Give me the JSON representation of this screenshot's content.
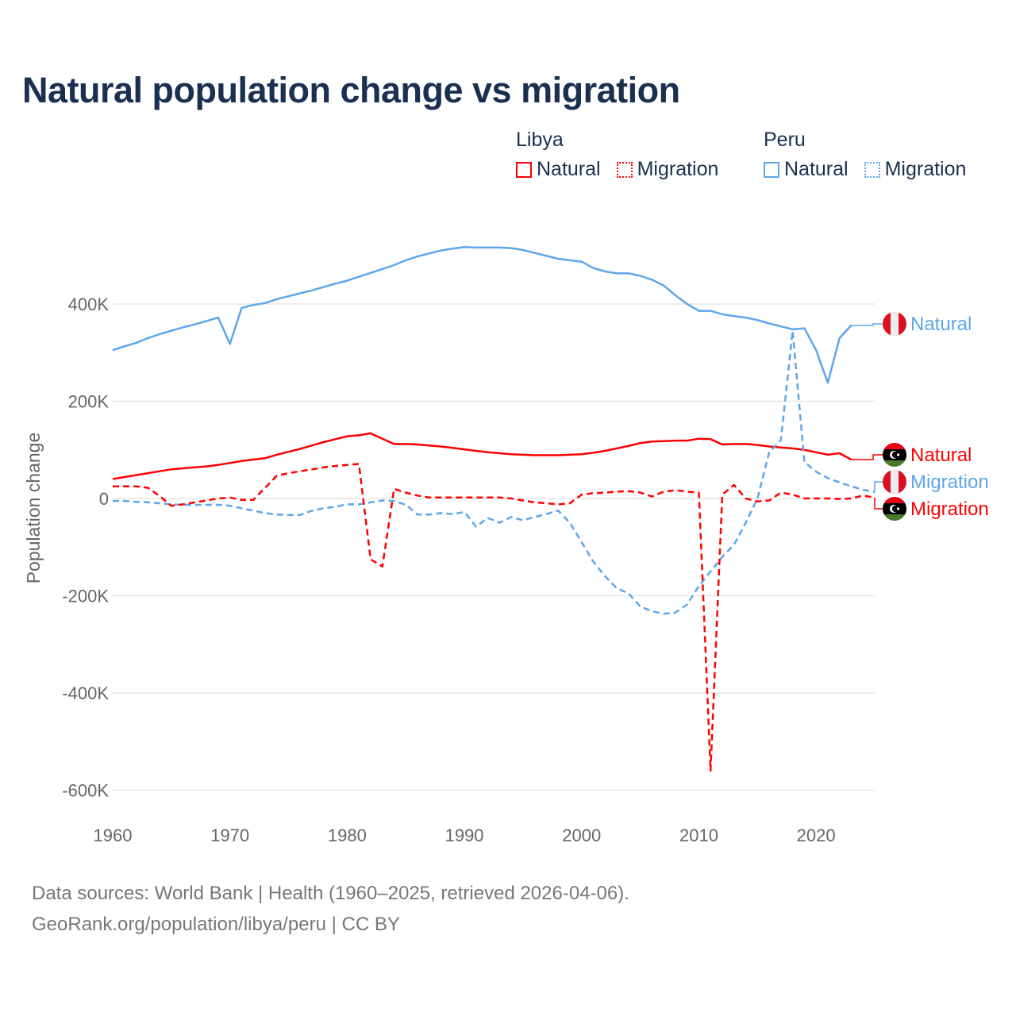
{
  "colors": {
    "libya": "#ff0000",
    "peru": "#5ea6ea",
    "title": "#1b3050"
  },
  "legend": {
    "groups": [
      {
        "country": "Libya",
        "color": "#ff0000",
        "items": [
          {
            "label": "Natural",
            "style": "solid"
          },
          {
            "label": "Migration",
            "style": "dotted"
          }
        ]
      },
      {
        "country": "Peru",
        "color": "#5ea6ea",
        "items": [
          {
            "label": "Natural",
            "style": "solid"
          },
          {
            "label": "Migration",
            "style": "dotted"
          }
        ]
      }
    ]
  },
  "footer": {
    "line1": "Data sources: World Bank | Health (1960–2025, retrieved 2026-04-06).",
    "line2": "GeoRank.org/population/libya/peru | CC BY"
  },
  "chart_data": {
    "type": "line",
    "title": "Natural population change vs migration",
    "xlabel": "",
    "ylabel": "Population change",
    "xlim": [
      1960,
      2025
    ],
    "ylim": [
      -600000,
      520000
    ],
    "x_ticks": [
      1960,
      1970,
      1980,
      1990,
      2000,
      2010,
      2020
    ],
    "y_ticks": [
      {
        "value": 400000,
        "label": "400K"
      },
      {
        "value": 200000,
        "label": "200K"
      },
      {
        "value": 0,
        "label": "0"
      },
      {
        "value": -200000,
        "label": "-200K"
      },
      {
        "value": -400000,
        "label": "-400K"
      },
      {
        "value": -600000,
        "label": "-600K"
      }
    ],
    "grid": true,
    "legend_position": "top-right",
    "series": [
      {
        "name": "Peru Natural",
        "country": "Peru",
        "end_label": "Natural",
        "flag": "peru",
        "color": "#5ea6ea",
        "dash": "solid",
        "start_year": 1960,
        "values_k": [
          305,
          313,
          320,
          330,
          338,
          345,
          352,
          358,
          365,
          372,
          318,
          392,
          398,
          402,
          410,
          416,
          422,
          428,
          435,
          442,
          448,
          456,
          464,
          472,
          480,
          490,
          498,
          504,
          510,
          514,
          517,
          516,
          516,
          516,
          515,
          511,
          505,
          499,
          493,
          490,
          487,
          474,
          467,
          463,
          463,
          458,
          450,
          438,
          418,
          400,
          386,
          386,
          379,
          375,
          372,
          367,
          360,
          354,
          348,
          350,
          305,
          238,
          330,
          356
        ]
      },
      {
        "name": "Libya Natural",
        "country": "Libya",
        "end_label": "Natural",
        "flag": "libya",
        "color": "#ff0000",
        "dash": "solid",
        "start_year": 1960,
        "values_k": [
          40,
          44,
          48,
          52,
          56,
          60,
          62,
          64,
          66,
          69,
          73,
          77,
          80,
          83,
          90,
          96,
          102,
          109,
          116,
          122,
          128,
          130,
          134,
          123,
          112,
          112,
          111,
          109,
          107,
          104,
          101,
          98,
          95,
          93,
          91,
          90,
          89,
          89,
          89,
          90,
          91,
          94,
          98,
          103,
          108,
          114,
          117,
          118,
          119,
          119,
          123,
          122,
          111,
          112,
          112,
          110,
          107,
          105,
          103,
          100,
          95,
          90,
          93,
          80
        ]
      },
      {
        "name": "Peru Migration",
        "country": "Peru",
        "end_label": "Migration",
        "flag": "peru",
        "color": "#5ea6ea",
        "dash": "dashed",
        "start_year": 1960,
        "values_k": [
          -5,
          -5,
          -7,
          -8,
          -10,
          -12,
          -13,
          -13,
          -13,
          -13,
          -15,
          -20,
          -25,
          -30,
          -33,
          -34,
          -34,
          -25,
          -20,
          -17,
          -12,
          -12,
          -8,
          -4,
          -5,
          -13,
          -33,
          -33,
          -30,
          -32,
          -28,
          -58,
          -40,
          -50,
          -38,
          -45,
          -38,
          -32,
          -25,
          -50,
          -90,
          -130,
          -160,
          -185,
          -195,
          -222,
          -232,
          -237,
          -235,
          -218,
          -180,
          -150,
          -120,
          -95,
          -50,
          0,
          95,
          120,
          345,
          75,
          55,
          42,
          33,
          25,
          18,
          13
        ]
      },
      {
        "name": "Libya Migration",
        "country": "Libya",
        "end_label": "Migration",
        "flag": "libya",
        "color": "#ff0000",
        "dash": "dashed",
        "start_year": 1960,
        "values_k": [
          25,
          25,
          25,
          22,
          5,
          -15,
          -12,
          -8,
          -4,
          0,
          2,
          -3,
          -3,
          22,
          47,
          52,
          56,
          60,
          64,
          67,
          69,
          71,
          -125,
          -140,
          20,
          12,
          6,
          2,
          2,
          2,
          2,
          2,
          2,
          2,
          0,
          -4,
          -8,
          -10,
          -12,
          -10,
          8,
          11,
          12,
          14,
          15,
          12,
          4,
          14,
          17,
          14,
          12,
          -560,
          8,
          28,
          0,
          -6,
          -4,
          12,
          8,
          0,
          0,
          0,
          -1,
          0,
          6,
          2
        ]
      }
    ]
  }
}
